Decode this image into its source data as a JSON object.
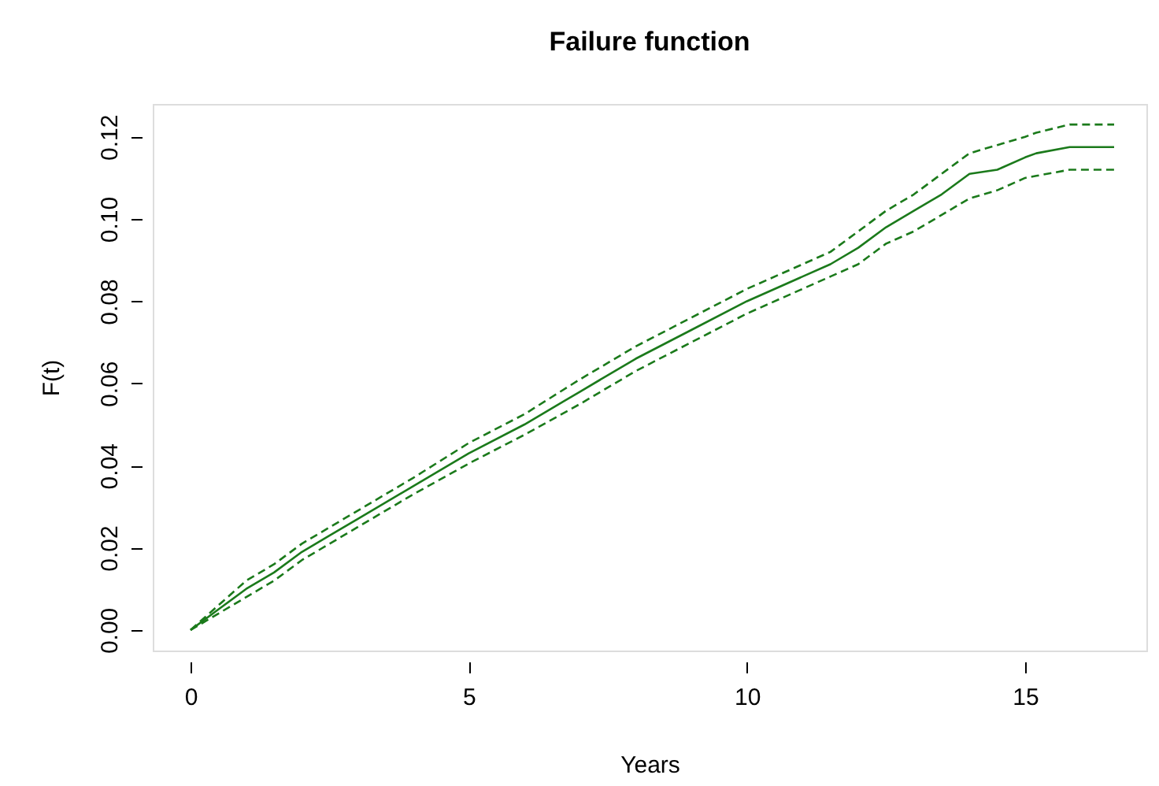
{
  "chart_data": {
    "type": "line",
    "title": "Failure function",
    "xlabel": "Years",
    "ylabel": "F(t)",
    "x": [
      0,
      0.5,
      1,
      1.5,
      2,
      2.5,
      3,
      4,
      5,
      6,
      7,
      8,
      9,
      10,
      11,
      11.5,
      12,
      12.5,
      13,
      13.5,
      14,
      14.5,
      15,
      15.2,
      15.8,
      16.6
    ],
    "series": [
      {
        "color": "#1b7a1b",
        "line_style": "solid",
        "values": [
          0,
          0.005,
          0.01,
          0.014,
          0.019,
          0.023,
          0.027,
          0.035,
          0.043,
          0.05,
          0.058,
          0.066,
          0.073,
          0.08,
          0.086,
          0.089,
          0.093,
          0.098,
          0.102,
          0.106,
          0.111,
          0.112,
          0.115,
          0.116,
          0.1175,
          0.1175
        ]
      },
      {
        "color": "#1b7a1b",
        "line_style": "dashed",
        "values": [
          0,
          0.004,
          0.008,
          0.012,
          0.017,
          0.021,
          0.025,
          0.033,
          0.0405,
          0.0475,
          0.055,
          0.063,
          0.07,
          0.077,
          0.083,
          0.086,
          0.089,
          0.094,
          0.097,
          0.101,
          0.105,
          0.107,
          0.11,
          0.1105,
          0.112,
          0.112
        ]
      },
      {
        "color": "#1b7a1b",
        "line_style": "dashed",
        "values": [
          0,
          0.006,
          0.012,
          0.016,
          0.021,
          0.025,
          0.029,
          0.037,
          0.0455,
          0.0525,
          0.061,
          0.069,
          0.076,
          0.083,
          0.089,
          0.092,
          0.097,
          0.102,
          0.106,
          0.111,
          0.116,
          0.118,
          0.12,
          0.121,
          0.123,
          0.123
        ]
      }
    ],
    "xlim": [
      -0.68,
      17.18
    ],
    "ylim": [
      -0.005,
      0.128
    ],
    "xticks": [
      0,
      5,
      10,
      15
    ],
    "yticks": [
      {
        "value": 0,
        "label": "0.00"
      },
      {
        "value": 0.02,
        "label": "0.02"
      },
      {
        "value": 0.04,
        "label": "0.04"
      },
      {
        "value": 0.06,
        "label": "0.06"
      },
      {
        "value": 0.08,
        "label": "0.08"
      },
      {
        "value": 0.1,
        "label": "0.10"
      },
      {
        "value": 0.12,
        "label": "0.12"
      }
    ],
    "grid": false
  }
}
